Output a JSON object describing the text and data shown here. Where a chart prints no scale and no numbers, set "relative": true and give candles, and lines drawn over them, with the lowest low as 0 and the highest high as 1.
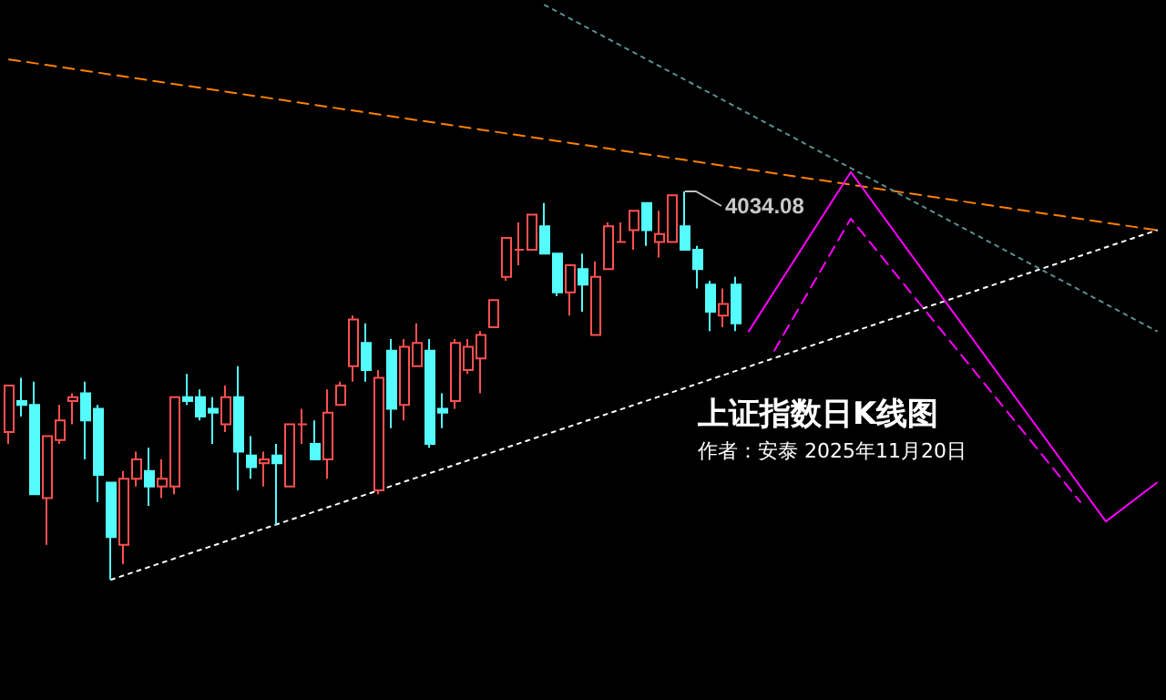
{
  "chart_data": {
    "type": "candlestick",
    "title": "上证指数日K线图",
    "subtitle": "作者：安泰 2025年11月20日",
    "relative": true,
    "annotations": [
      "4034.08"
    ],
    "colors": [
      "#ff5050",
      "#54fcfc",
      "#54fcfc",
      "#ff5050",
      "#ff5050",
      "#ff5050",
      "#54fcfc",
      "#54fcfc",
      "#54fcfc",
      "#ff5050",
      "#ff5050",
      "#54fcfc",
      "#ff5050",
      "#ff5050",
      "#54fcfc",
      "#54fcfc",
      "#54fcfc",
      "#ff5050",
      "#54fcfc",
      "#54fcfc",
      "#ff5050",
      "#54fcfc",
      "#ff5050",
      "#ff5050",
      "#54fcfc",
      "#ff5050",
      "#ff5050",
      "#ff5050",
      "#54fcfc",
      "#ff5050",
      "#54fcfc",
      "#ff5050",
      "#ff5050",
      "#54fcfc",
      "#54fcfc",
      "#ff5050",
      "#ff5050",
      "#ff5050",
      "#ff5050",
      "#ff5050",
      "#ff5050",
      "#ff5050",
      "#54fcfc",
      "#54fcfc",
      "#ff5050",
      "#54fcfc",
      "#ff5050",
      "#ff5050",
      "#ff5050",
      "#ff5050",
      "#54fcfc",
      "#ff5050",
      "#ff5050",
      "#54fcfc",
      "#54fcfc",
      "#54fcfc",
      "#ff5050",
      "#54fcfc",
      null,
      null,
      null,
      null,
      null,
      null,
      null,
      null,
      null,
      null,
      null,
      null,
      null,
      null,
      null,
      null,
      null,
      null,
      null,
      null,
      null,
      null,
      null,
      null,
      null,
      null,
      null,
      null,
      null,
      null,
      null,
      null,
      null
    ],
    "categories": [
      null,
      null,
      null,
      null,
      null,
      null,
      null,
      null,
      null,
      null,
      null,
      null,
      null,
      null,
      null,
      null,
      null,
      null,
      null,
      null,
      null,
      null,
      null,
      null,
      null,
      null,
      null,
      null,
      null,
      null,
      null,
      null,
      null,
      null,
      null,
      null,
      null,
      null,
      null,
      null,
      null,
      null,
      null,
      null,
      null,
      null,
      null,
      null,
      null,
      null,
      null,
      null,
      null,
      null,
      null,
      null,
      null,
      null,
      null,
      null,
      null,
      null,
      null,
      null,
      null,
      null,
      null,
      null,
      null,
      null,
      null,
      null,
      null,
      null,
      null,
      null,
      null,
      null,
      null,
      null,
      null,
      null,
      null,
      null,
      null,
      null,
      null,
      null,
      null,
      null,
      null
    ],
    "ohlc": [
      [
        0.38,
        0.5,
        0.35,
        0.5
      ],
      [
        0.46,
        0.52,
        0.42,
        0.45
      ],
      [
        0.45,
        0.51,
        0.22,
        0.22
      ],
      [
        0.21,
        0.37,
        0.09,
        0.37
      ],
      [
        0.36,
        0.45,
        0.35,
        0.41
      ],
      [
        0.46,
        0.48,
        0.4,
        0.47
      ],
      [
        0.48,
        0.51,
        0.31,
        0.41
      ],
      [
        0.44,
        0.45,
        0.2,
        0.27
      ],
      [
        0.25,
        0.25,
        0,
        0.11
      ],
      [
        0.09,
        0.28,
        0.04,
        0.26
      ],
      [
        0.26,
        0.33,
        0.24,
        0.31
      ],
      [
        0.28,
        0.34,
        0.19,
        0.24
      ],
      [
        0.24,
        0.31,
        0.21,
        0.26
      ],
      [
        0.24,
        0.47,
        0.22,
        0.47
      ],
      [
        0.47,
        0.53,
        0.45,
        0.46
      ],
      [
        0.47,
        0.49,
        0.41,
        0.42
      ],
      [
        0.44,
        0.47,
        0.35,
        0.43
      ],
      [
        0.4,
        0.5,
        0.38,
        0.47
      ],
      [
        0.47,
        0.55,
        0.23,
        0.33
      ],
      [
        0.32,
        0.37,
        0.26,
        0.29
      ],
      [
        0.3,
        0.33,
        0.24,
        0.31
      ],
      [
        0.32,
        0.35,
        0.14,
        0.3
      ],
      [
        0.24,
        0.4,
        0.24,
        0.4
      ],
      [
        0.4,
        0.44,
        0.35,
        0.4
      ],
      [
        0.35,
        0.41,
        0.31,
        0.31
      ],
      [
        0.31,
        0.49,
        0.26,
        0.43
      ],
      [
        0.45,
        0.51,
        0.45,
        0.5
      ],
      [
        0.55,
        0.68,
        0.51,
        0.67
      ],
      [
        0.61,
        0.66,
        0.51,
        0.54
      ],
      [
        0.23,
        0.54,
        0.22,
        0.52
      ],
      [
        0.59,
        0.62,
        0.39,
        0.44
      ],
      [
        0.45,
        0.62,
        0.41,
        0.6
      ],
      [
        0.55,
        0.66,
        0.55,
        0.61
      ],
      [
        0.59,
        0.62,
        0.34,
        0.35
      ],
      [
        0.44,
        0.48,
        0.39,
        0.43
      ],
      [
        0.46,
        0.62,
        0.44,
        0.61
      ],
      [
        0.54,
        0.62,
        0.53,
        0.6
      ],
      [
        0.57,
        0.64,
        0.48,
        0.63
      ],
      [
        0.65,
        0.72,
        0.65,
        0.72
      ],
      [
        0.78,
        0.88,
        0.77,
        0.88
      ],
      [
        0.85,
        0.92,
        0.81,
        0.85
      ],
      [
        0.85,
        0.94,
        0.85,
        0.94
      ],
      [
        0.91,
        0.97,
        0.84,
        0.84
      ],
      [
        0.84,
        0.84,
        0.73,
        0.74
      ],
      [
        0.74,
        0.81,
        0.68,
        0.81
      ],
      [
        0.8,
        0.84,
        0.69,
        0.76
      ],
      [
        0.63,
        0.82,
        0.63,
        0.78
      ],
      [
        0.8,
        0.92,
        0.8,
        0.91
      ],
      [
        0.87,
        0.92,
        0.87,
        0.87
      ],
      [
        0.9,
        0.95,
        0.85,
        0.95
      ],
      [
        0.97,
        0.97,
        0.86,
        0.9
      ],
      [
        0.87,
        0.95,
        0.83,
        0.89
      ],
      [
        0.87,
        0.99,
        0.87,
        0.99
      ],
      [
        0.91,
        1,
        0.85,
        0.85
      ],
      [
        0.85,
        0.86,
        0.75,
        0.8
      ],
      [
        0.76,
        0.77,
        0.64,
        0.69
      ],
      [
        0.68,
        0.75,
        0.65,
        0.71
      ],
      [
        0.76,
        0.78,
        0.64,
        0.66
      ],
      null,
      null,
      null,
      null,
      null,
      null,
      null,
      null,
      null,
      null,
      null,
      null,
      null,
      null,
      null,
      null,
      null,
      null,
      null,
      null,
      null,
      null,
      null,
      null,
      null,
      null,
      null,
      null,
      null,
      null,
      null,
      null,
      null
    ],
    "series": [
      {
        "type": "line",
        "color": "#ff8000",
        "line_style": "dashed",
        "values": [
          1.34,
          null,
          null,
          null,
          null,
          null,
          null,
          null,
          null,
          null,
          null,
          null,
          null,
          null,
          null,
          null,
          null,
          null,
          null,
          null,
          null,
          null,
          null,
          null,
          null,
          null,
          null,
          null,
          null,
          null,
          null,
          null,
          null,
          null,
          null,
          null,
          null,
          null,
          null,
          null,
          null,
          null,
          null,
          null,
          null,
          null,
          null,
          null,
          null,
          null,
          null,
          null,
          null,
          null,
          null,
          null,
          null,
          null,
          null,
          null,
          null,
          null,
          null,
          null,
          null,
          null,
          null,
          null,
          null,
          null,
          null,
          null,
          null,
          null,
          null,
          null,
          null,
          null,
          null,
          null,
          null,
          null,
          null,
          null,
          null,
          null,
          null,
          null,
          null,
          null,
          0.9
        ]
      },
      {
        "type": "line",
        "color": "#ffffff",
        "line_style": "dotted",
        "values": [
          null,
          null,
          null,
          null,
          null,
          null,
          null,
          null,
          0,
          null,
          null,
          null,
          null,
          null,
          null,
          null,
          null,
          null,
          null,
          null,
          null,
          null,
          null,
          null,
          null,
          null,
          null,
          null,
          null,
          null,
          null,
          null,
          null,
          null,
          null,
          null,
          null,
          null,
          null,
          null,
          null,
          null,
          null,
          null,
          null,
          null,
          null,
          null,
          null,
          null,
          null,
          null,
          null,
          null,
          null,
          null,
          null,
          null,
          null,
          null,
          null,
          null,
          null,
          null,
          null,
          null,
          null,
          null,
          null,
          null,
          null,
          null,
          null,
          null,
          null,
          null,
          null,
          null,
          null,
          null,
          null,
          null,
          null,
          null,
          null,
          null,
          null,
          null,
          null,
          null,
          0.9
        ]
      },
      {
        "type": "line",
        "color": "#5a9090",
        "line_style": "dotted",
        "values": [
          null,
          null,
          null,
          null,
          null,
          null,
          null,
          null,
          null,
          null,
          null,
          null,
          null,
          null,
          null,
          null,
          null,
          null,
          null,
          null,
          null,
          null,
          null,
          null,
          null,
          null,
          null,
          null,
          null,
          null,
          null,
          null,
          null,
          null,
          null,
          null,
          null,
          null,
          null,
          null,
          null,
          null,
          1.48,
          null,
          null,
          null,
          null,
          null,
          null,
          null,
          null,
          null,
          null,
          null,
          null,
          null,
          null,
          null,
          null,
          null,
          null,
          null,
          null,
          null,
          null,
          null,
          null,
          null,
          null,
          null,
          null,
          null,
          null,
          null,
          null,
          null,
          null,
          null,
          null,
          null,
          null,
          null,
          null,
          null,
          null,
          null,
          null,
          null,
          null,
          null,
          0.64
        ]
      },
      {
        "type": "line",
        "color": "#ff00ff",
        "line_style": "solid",
        "values": [
          null,
          null,
          null,
          null,
          null,
          null,
          null,
          null,
          null,
          null,
          null,
          null,
          null,
          null,
          null,
          null,
          null,
          null,
          null,
          null,
          null,
          null,
          null,
          null,
          null,
          null,
          null,
          null,
          null,
          null,
          null,
          null,
          null,
          null,
          null,
          null,
          null,
          null,
          null,
          null,
          null,
          null,
          null,
          null,
          null,
          null,
          null,
          null,
          null,
          null,
          null,
          null,
          null,
          null,
          null,
          null,
          null,
          null,
          0.64,
          null,
          null,
          null,
          null,
          null,
          null,
          null,
          1.05,
          null,
          null,
          null,
          null,
          null,
          null,
          null,
          null,
          null,
          null,
          null,
          null,
          null,
          null,
          null,
          null,
          null,
          null,
          null,
          0.15,
          null,
          null,
          null,
          0.25
        ]
      },
      {
        "type": "line",
        "color": "#ff00ff",
        "line_style": "dashed",
        "values": [
          null,
          null,
          null,
          null,
          null,
          null,
          null,
          null,
          null,
          null,
          null,
          null,
          null,
          null,
          null,
          null,
          null,
          null,
          null,
          null,
          null,
          null,
          null,
          null,
          null,
          null,
          null,
          null,
          null,
          null,
          null,
          null,
          null,
          null,
          null,
          null,
          null,
          null,
          null,
          null,
          null,
          null,
          null,
          null,
          null,
          null,
          null,
          null,
          null,
          null,
          null,
          null,
          null,
          null,
          null,
          null,
          null,
          null,
          null,
          null,
          0.59,
          null,
          null,
          null,
          null,
          null,
          0.93,
          null,
          null,
          null,
          null,
          null,
          null,
          null,
          null,
          null,
          null,
          null,
          null,
          null,
          null,
          null,
          null,
          null,
          0.2,
          null,
          null,
          null,
          null,
          null,
          null
        ]
      }
    ]
  }
}
